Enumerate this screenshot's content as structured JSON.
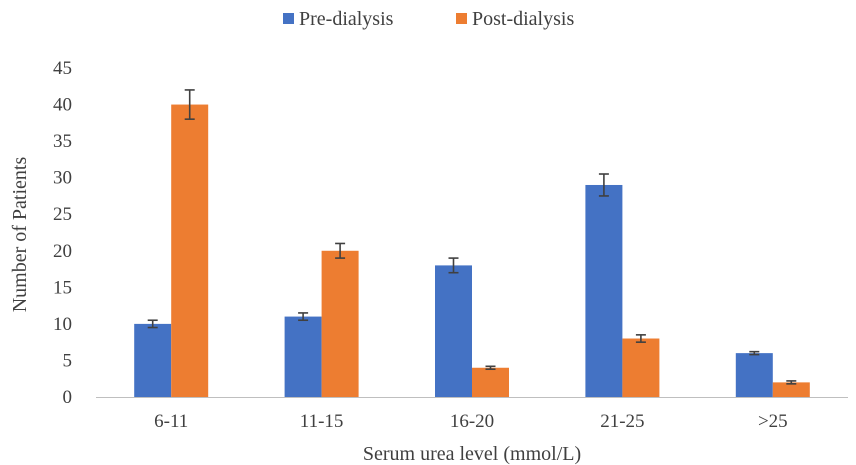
{
  "chart_data": {
    "type": "bar",
    "xlabel": "Serum urea level (mmol/L)",
    "ylabel": "Number of Patients",
    "categories": [
      "6-11",
      "11-15",
      "16-20",
      "21-25",
      ">25"
    ],
    "series": [
      {
        "name": "Pre-dialysis",
        "color": "#4472c4",
        "values": [
          10,
          11,
          18,
          29,
          6
        ],
        "error": [
          0.5,
          0.5,
          1.0,
          1.5,
          0.2
        ]
      },
      {
        "name": "Post-dialysis",
        "color": "#ed7d31",
        "values": [
          40,
          20,
          4,
          8,
          2
        ],
        "error": [
          2.0,
          1.0,
          0.2,
          0.5,
          0.2
        ]
      }
    ],
    "ylim": [
      0,
      45
    ],
    "yticks": [
      0,
      5,
      10,
      15,
      20,
      25,
      30,
      35,
      40,
      45
    ],
    "grid": false,
    "legend": "top-center",
    "axis_color": "#bfbfbf",
    "text_color": "#404040",
    "error_bar_color": "#404040"
  }
}
